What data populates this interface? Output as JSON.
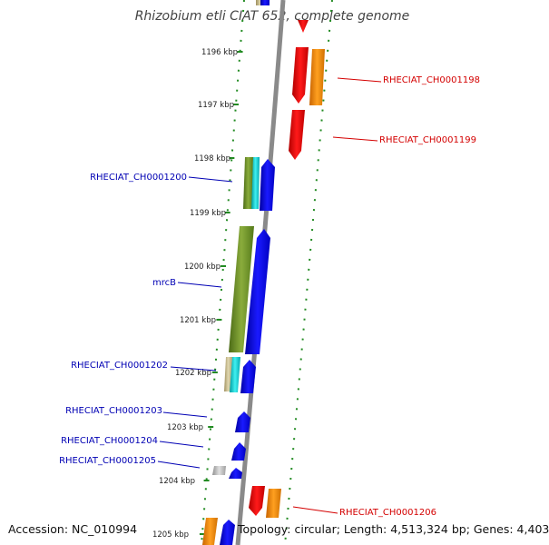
{
  "title": "Rhizobium etli CIAT 652, complete genome",
  "accession": "Accession: NC_010994",
  "topology": "Topology: circular; Length: 4,513,324 bp; Genes: 4,403",
  "colors": {
    "forward_label": "#d40000",
    "reverse_label": "#0000b4",
    "cds_forward": "#ff0000",
    "cds_reverse": "#0000ff",
    "orange": "#ff8c00",
    "olive": "#6b8e23",
    "cyan": "#00ced1",
    "grey": "#b4b4b4",
    "tick": "#228b22",
    "backbone": "#888888"
  },
  "ruler_ticks": [
    "1196 kbp",
    "1197 kbp",
    "1198 kbp",
    "1199 kbp",
    "1200 kbp",
    "1201 kbp",
    "1202 kbp",
    "1203 kbp",
    "1204 kbp",
    "1205 kbp"
  ],
  "gene_labels": [
    {
      "text": "RHECIAT_CH0001198",
      "strand": "forward"
    },
    {
      "text": "RHECIAT_CH0001199",
      "strand": "forward"
    },
    {
      "text": "RHECIAT_CH0001200",
      "strand": "reverse"
    },
    {
      "text": "mrcB",
      "strand": "reverse"
    },
    {
      "text": "RHECIAT_CH0001202",
      "strand": "reverse"
    },
    {
      "text": "RHECIAT_CH0001203",
      "strand": "reverse"
    },
    {
      "text": "RHECIAT_CH0001204",
      "strand": "reverse"
    },
    {
      "text": "RHECIAT_CH0001205",
      "strand": "reverse"
    },
    {
      "text": "RHECIAT_CH0001206",
      "strand": "forward"
    }
  ]
}
